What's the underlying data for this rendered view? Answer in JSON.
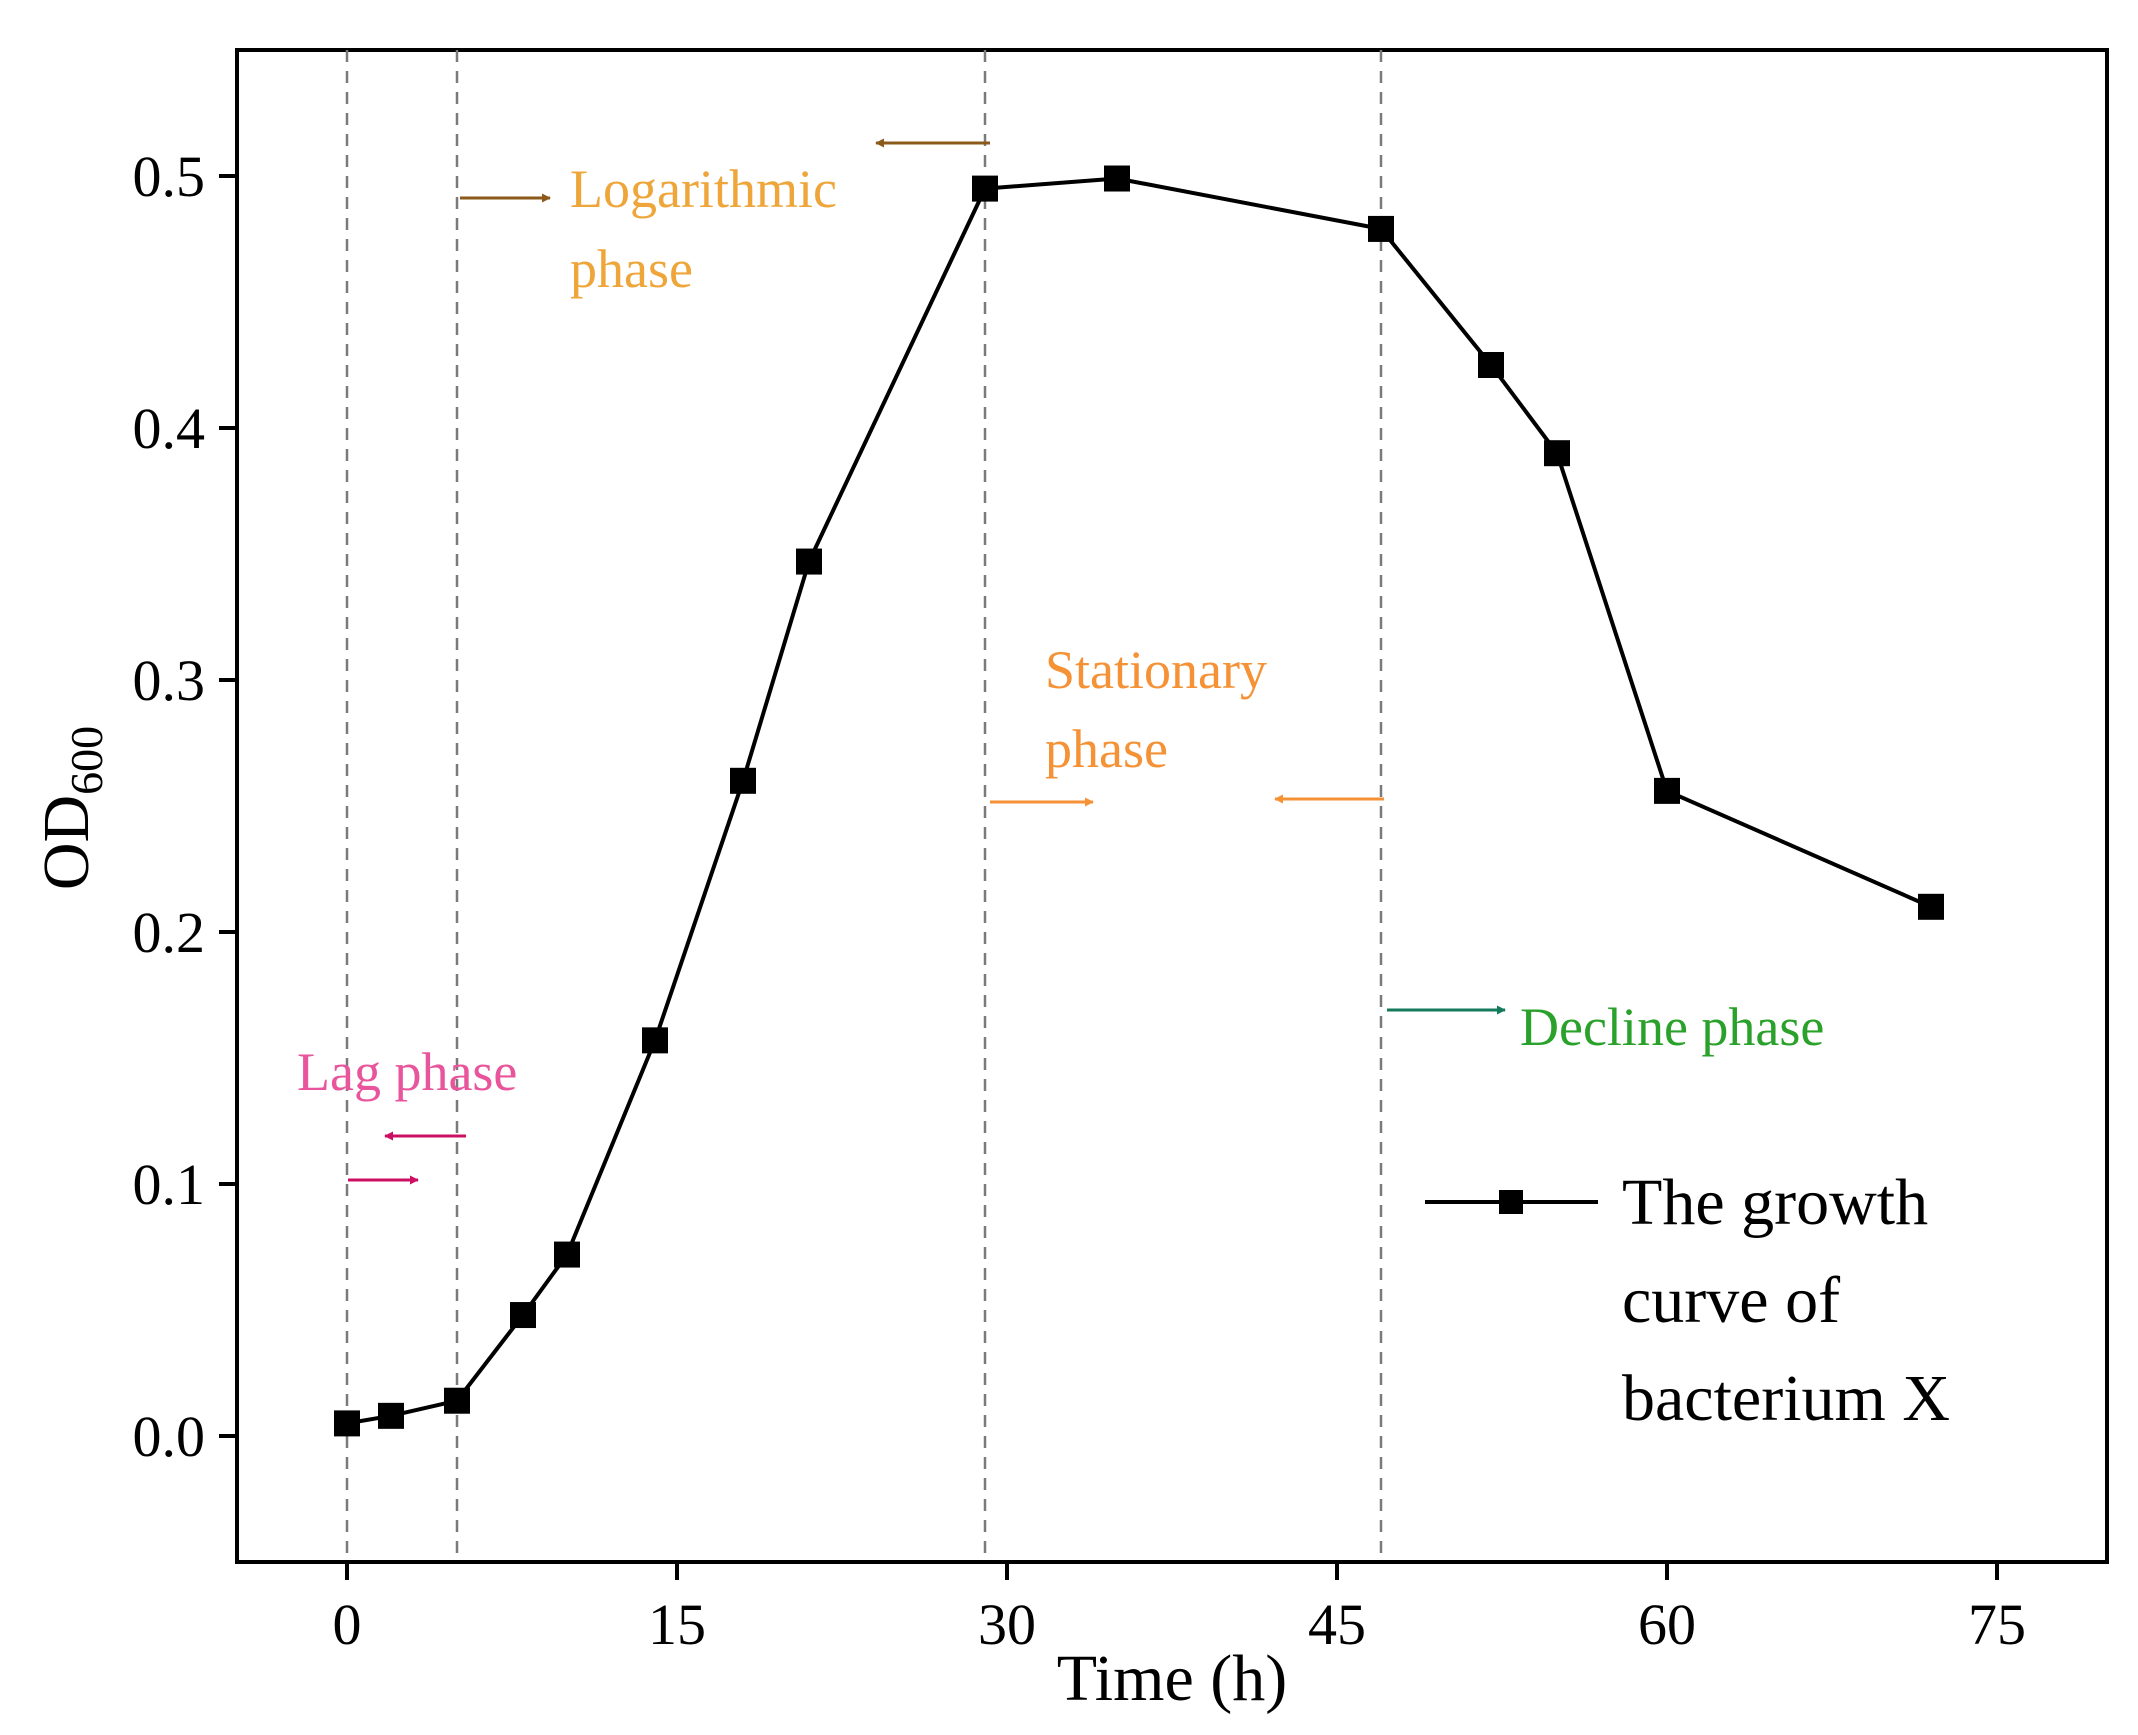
{
  "chart_data": {
    "type": "line",
    "xlabel": "Time (h)",
    "ylabel_main": "OD",
    "ylabel_sub": "600",
    "xlim": [
      -5,
      80
    ],
    "ylim": [
      -0.05,
      0.55
    ],
    "xticks": [
      0,
      15,
      30,
      45,
      60,
      75
    ],
    "yticks": [
      0.0,
      0.1,
      0.2,
      0.3,
      0.4,
      0.5
    ],
    "ytick_labels": [
      "0.0",
      "0.1",
      "0.2",
      "0.3",
      "0.4",
      "0.5"
    ],
    "series": [
      {
        "name": "The growth curve of bacterium X",
        "color": "#000000",
        "x": [
          0,
          2,
          5,
          8,
          10,
          14,
          18,
          21,
          29,
          35,
          47,
          52,
          55,
          60,
          72
        ],
        "y": [
          0.005,
          0.008,
          0.014,
          0.048,
          0.072,
          0.157,
          0.26,
          0.347,
          0.495,
          0.499,
          0.479,
          0.425,
          0.39,
          0.256,
          0.21
        ]
      }
    ],
    "legend": {
      "lines": [
        "The growth",
        "curve of",
        "bacterium X"
      ],
      "placement": "bottom-right"
    },
    "phase_boundaries": [
      0,
      5,
      29,
      47
    ],
    "annotations": [
      {
        "id": "lag",
        "lines": [
          "Lag phase"
        ],
        "color": "#e8559c",
        "arrow_color": "#cc0f62"
      },
      {
        "id": "log",
        "lines": [
          "Logarithmic",
          "phase"
        ],
        "color": "#eea63a",
        "arrow_color": "#8b5a1a"
      },
      {
        "id": "stationary",
        "lines": [
          "Stationary",
          "phase"
        ],
        "color": "#f59236",
        "arrow_color": "#f59236"
      },
      {
        "id": "decline",
        "lines": [
          "Decline phase"
        ],
        "color": "#2aa12a",
        "arrow_color": "#137a5a"
      }
    ]
  }
}
